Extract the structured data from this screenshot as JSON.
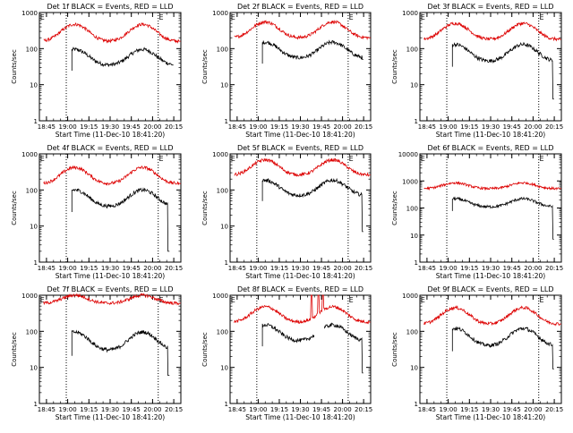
{
  "chart_data": {
    "type": "line",
    "layout": "3x3 grid of panels",
    "yscale": "log",
    "ylim": [
      1,
      1000
    ],
    "ylim_panel6": [
      1,
      10000
    ],
    "ylabel": "Counts/sec",
    "xlabel": "Start Time (11-Dec-10 18:41:20)",
    "x_ticks": [
      "18:45",
      "19:00",
      "19:15",
      "19:30",
      "19:45",
      "20:00",
      "20:15"
    ],
    "x_range_minutes": [
      -5,
      95
    ],
    "y_ticks": [
      "1",
      "10",
      "100",
      "1000"
    ],
    "y_ticks_panel6": [
      "1",
      "10",
      "100",
      "1000",
      "10000"
    ],
    "vline_times": [
      "18:59",
      "20:04"
    ],
    "e_marker": "E",
    "colors": {
      "events": "#000000",
      "lld": "#dd0000",
      "frame": "#000000",
      "background": "#ffffff"
    },
    "panels": [
      {
        "title": "Det 1f BLACK = Events, RED = LLD",
        "ylim": [
          1,
          1000
        ],
        "series": [
          {
            "key": "events",
            "start": 18,
            "end": 90,
            "base": 35,
            "peak": 95,
            "phases": [
              20,
              68
            ],
            "final_drop": 35
          },
          {
            "key": "lld",
            "start": -2,
            "end": 95,
            "base": 160,
            "peak": 470,
            "phases": [
              20,
              68
            ],
            "final_drop": 160
          }
        ]
      },
      {
        "title": "Det 2f BLACK = Events, RED = LLD",
        "ylim": [
          1,
          1000
        ],
        "series": [
          {
            "key": "events",
            "start": 18,
            "end": 90,
            "base": 55,
            "peak": 150,
            "phases": [
              20,
              68
            ],
            "final_drop": 50
          },
          {
            "key": "lld",
            "start": -2,
            "end": 95,
            "base": 200,
            "peak": 550,
            "phases": [
              20,
              68
            ],
            "final_drop": 200
          }
        ]
      },
      {
        "title": "Det 3f BLACK = Events, RED = LLD",
        "ylim": [
          1,
          1000
        ],
        "series": [
          {
            "key": "events",
            "start": 18,
            "end": 90,
            "base": 45,
            "peak": 130,
            "phases": [
              20,
              68
            ],
            "final_drop": 4
          },
          {
            "key": "lld",
            "start": -2,
            "end": 95,
            "base": 180,
            "peak": 500,
            "phases": [
              20,
              68
            ],
            "final_drop": 180
          }
        ]
      },
      {
        "title": "Det 4f BLACK = Events, RED = LLD",
        "ylim": [
          1,
          1000
        ],
        "series": [
          {
            "key": "events",
            "start": 18,
            "end": 87,
            "base": 35,
            "peak": 100,
            "phases": [
              20,
              68
            ],
            "final_drop": 2
          },
          {
            "key": "lld",
            "start": -2,
            "end": 95,
            "base": 150,
            "peak": 420,
            "phases": [
              20,
              68
            ],
            "final_drop": 150
          }
        ]
      },
      {
        "title": "Det 5f BLACK = Events, RED = LLD",
        "ylim": [
          1,
          1000
        ],
        "series": [
          {
            "key": "events",
            "start": 18,
            "end": 90,
            "base": 70,
            "peak": 185,
            "phases": [
              20,
              68
            ],
            "final_drop": 7
          },
          {
            "key": "lld",
            "start": -2,
            "end": 95,
            "base": 260,
            "peak": 680,
            "phases": [
              20,
              68
            ],
            "final_drop": 260
          }
        ]
      },
      {
        "title": "Det 6f BLACK = Events, RED = LLD",
        "ylim": [
          1,
          10000
        ],
        "series": [
          {
            "key": "events",
            "start": 18,
            "end": 90,
            "base": 110,
            "peak": 220,
            "phases": [
              20,
              68
            ],
            "final_drop": 7
          },
          {
            "key": "lld",
            "start": -2,
            "end": 95,
            "base": 520,
            "peak": 850,
            "phases": [
              20,
              68
            ],
            "final_drop": 520
          }
        ]
      },
      {
        "title": "Det 7f BLACK = Events, RED = LLD",
        "ylim": [
          1,
          1000
        ],
        "series": [
          {
            "key": "events",
            "start": 18,
            "end": 87,
            "base": 30,
            "peak": 95,
            "phases": [
              20,
              68
            ],
            "final_drop": 6
          },
          {
            "key": "lld",
            "start": -2,
            "end": 95,
            "base": 600,
            "peak": 1000,
            "phases": [
              20,
              68
            ],
            "final_drop": 600
          }
        ]
      },
      {
        "title": "Det 8f BLACK = Events, RED = LLD",
        "ylim": [
          1,
          1000
        ],
        "series": [
          {
            "key": "events",
            "start": 18,
            "end": 90,
            "base": 55,
            "peak": 150,
            "phases": [
              20,
              68
            ],
            "final_drop": 7,
            "gap": [
              55,
              62
            ]
          },
          {
            "key": "lld",
            "start": -2,
            "end": 95,
            "base": 180,
            "peak": 480,
            "phases": [
              20,
              68
            ],
            "final_drop": 180,
            "spikes": [
              53,
              58,
              61
            ]
          }
        ]
      },
      {
        "title": "Det 9f BLACK = Events, RED = LLD",
        "ylim": [
          1,
          1000
        ],
        "series": [
          {
            "key": "events",
            "start": 18,
            "end": 90,
            "base": 40,
            "peak": 120,
            "phases": [
              20,
              68
            ],
            "final_drop": 9
          },
          {
            "key": "lld",
            "start": -2,
            "end": 95,
            "base": 160,
            "peak": 450,
            "phases": [
              20,
              68
            ],
            "final_drop": 160
          }
        ]
      }
    ]
  }
}
